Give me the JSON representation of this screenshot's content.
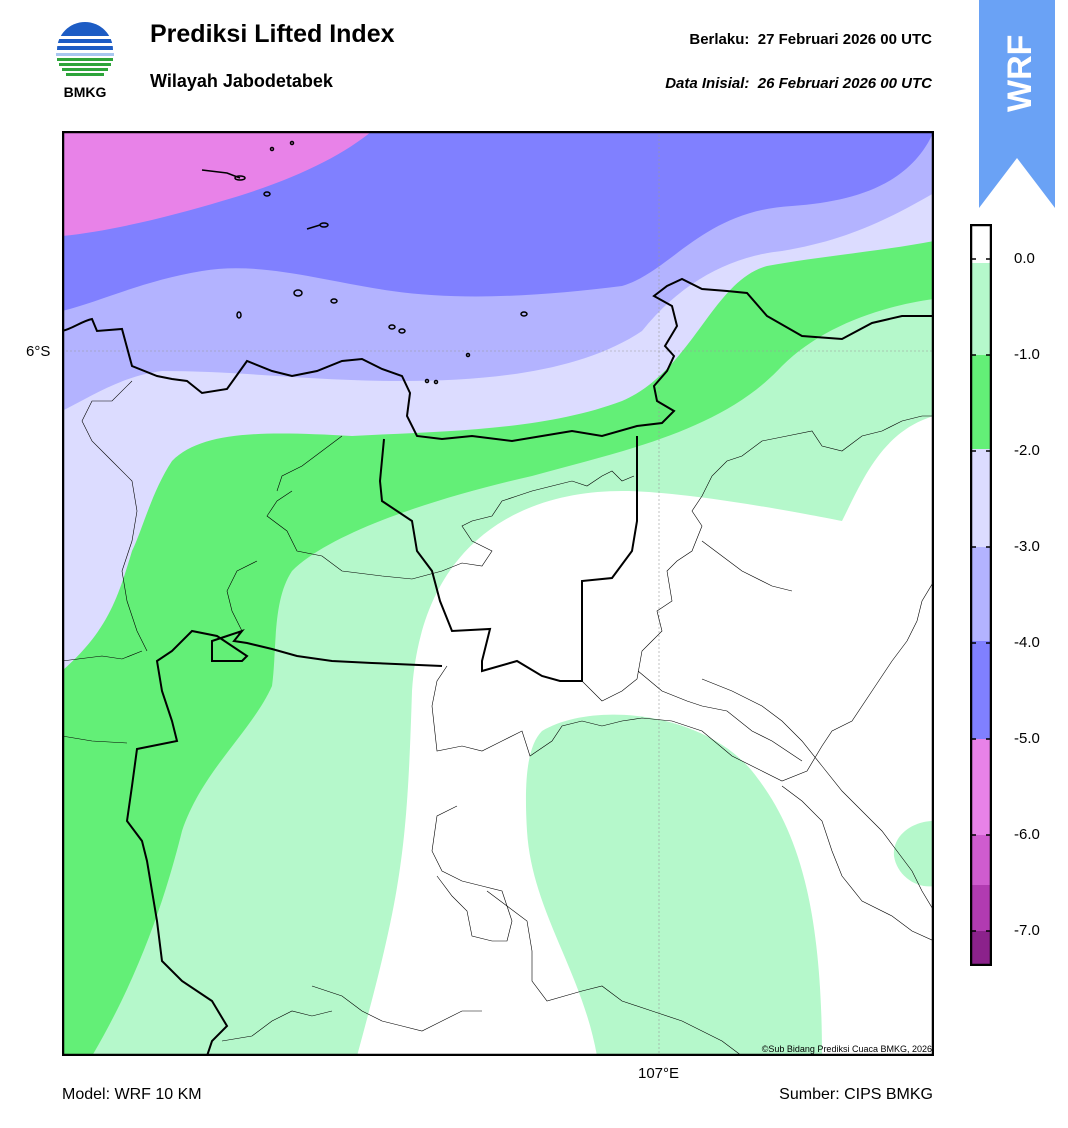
{
  "header": {
    "title": "Prediksi Lifted Index",
    "subtitle": "Wilayah Jabodetabek",
    "valid_label": "Berlaku:",
    "valid_value": "27 Februari 2026 00 UTC",
    "init_label": "Data Inisial:",
    "init_value": "26 Februari 2026 00 UTC"
  },
  "logo": {
    "text": "BMKG",
    "icon": "bmkg-logo-icon"
  },
  "badge": {
    "text": "WRF",
    "color": "#6aa2f5"
  },
  "map": {
    "lat_label": "6°S",
    "lon_label": "107°E",
    "copyright": "©Sub Bidang Prediksi Cuaca BMKG, 2026",
    "fill_colors": {
      "lt_minus6": "#e882e8",
      "minus5_minus4": "#8080ff",
      "minus4_minus3": "#b3b3ff",
      "minus3_minus2": "#dcdcff",
      "minus2_minus1": "#63ef77",
      "minus1_0": "#b5f8cb",
      "above_0": "#ffffff"
    }
  },
  "colorbar": {
    "ticks": [
      "0.0",
      "-1.0",
      "-2.0",
      "-3.0",
      "-4.0",
      "-5.0",
      "-6.0",
      "-7.0"
    ],
    "colors": [
      "#ffffff",
      "#b5f8cb",
      "#63ef77",
      "#dcdcff",
      "#b3b3ff",
      "#8080ff",
      "#e882e8",
      "#cf5ccf",
      "#b13bb1",
      "#8b228b"
    ]
  },
  "footer": {
    "model": "Model: WRF 10 KM",
    "source": "Sumber: CIPS BMKG"
  }
}
